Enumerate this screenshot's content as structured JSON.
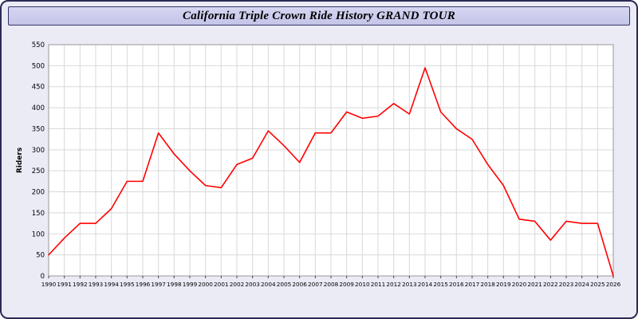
{
  "window": {
    "title": "California Triple Crown Ride History GRAND TOUR"
  },
  "colors": {
    "line": "#ff0000",
    "background": "#ebebf6",
    "titlebar_background": "#ccccee",
    "frame_border": "#2b2b55",
    "grid": "#d9d9d9",
    "plot_background": "#ffffff",
    "axis_text": "#000000"
  },
  "chart_data": {
    "type": "line",
    "title": "California Triple Crown Ride History GRAND TOUR",
    "xlabel": "",
    "ylabel": "Riders",
    "ylim": [
      0,
      550
    ],
    "ytick_step": 50,
    "grid": true,
    "legend": "none",
    "x": [
      1990,
      1991,
      1992,
      1993,
      1994,
      1995,
      1996,
      1997,
      1998,
      1999,
      2000,
      2001,
      2002,
      2003,
      2004,
      2005,
      2006,
      2007,
      2008,
      2009,
      2010,
      2011,
      2012,
      2013,
      2014,
      2015,
      2016,
      2017,
      2018,
      2019,
      2020,
      2021,
      2022,
      2023,
      2024,
      2025,
      2026
    ],
    "series": [
      {
        "name": "Riders",
        "color": "#ff0000",
        "values": [
          50,
          90,
          125,
          125,
          160,
          225,
          225,
          340,
          290,
          250,
          215,
          210,
          265,
          280,
          345,
          310,
          270,
          340,
          340,
          390,
          375,
          380,
          410,
          385,
          495,
          390,
          350,
          325,
          265,
          215,
          135,
          130,
          85,
          130,
          125,
          125,
          0
        ]
      }
    ]
  }
}
